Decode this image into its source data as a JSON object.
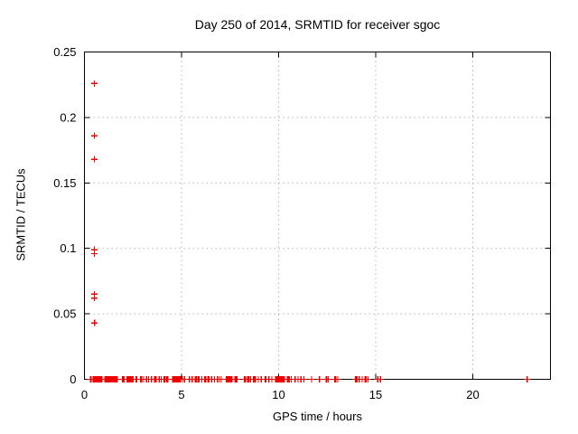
{
  "chart_data": {
    "type": "scatter",
    "title": "Day 250 of 2014, SRMTID for receiver sgoc",
    "xlabel": "GPS time / hours",
    "ylabel": "SRMTID / TECUs",
    "xlim": [
      0,
      24
    ],
    "ylim": [
      0,
      0.25
    ],
    "xticks": [
      0,
      5,
      10,
      15,
      20
    ],
    "yticks": [
      0,
      0.05,
      0.1,
      0.15,
      0.2,
      0.25
    ],
    "xtick_labels": [
      "0",
      "5",
      "10",
      "15",
      "20"
    ],
    "ytick_labels": [
      "0",
      "0.05",
      "0.1",
      "0.15",
      "0.2",
      "0.25"
    ],
    "grid": true,
    "legend_position": "none",
    "marker": "plus",
    "colors": {
      "marker": "#ee0000",
      "grid": "#b5b5b5",
      "axis": "#000000",
      "text": "#000000",
      "background": "#ffffff"
    },
    "series": [
      {
        "name": "SRMTID",
        "points": [
          [
            0.51,
            0.226
          ],
          [
            0.51,
            0.186
          ],
          [
            0.51,
            0.168
          ],
          [
            0.51,
            0.099
          ],
          [
            0.51,
            0.096
          ],
          [
            0.51,
            0.065
          ],
          [
            0.51,
            0.062
          ],
          [
            0.52,
            0.043
          ],
          [
            0.3,
            0
          ],
          [
            0.35,
            0
          ],
          [
            0.45,
            0
          ],
          [
            0.5,
            0
          ],
          [
            0.55,
            0
          ],
          [
            0.6,
            0
          ],
          [
            0.65,
            0
          ],
          [
            0.7,
            0
          ],
          [
            0.75,
            0
          ],
          [
            0.8,
            0
          ],
          [
            0.85,
            0
          ],
          [
            0.9,
            0
          ],
          [
            1.05,
            0
          ],
          [
            1.1,
            0
          ],
          [
            1.15,
            0
          ],
          [
            1.2,
            0
          ],
          [
            1.25,
            0
          ],
          [
            1.3,
            0
          ],
          [
            1.35,
            0
          ],
          [
            1.4,
            0
          ],
          [
            1.45,
            0
          ],
          [
            1.5,
            0
          ],
          [
            1.55,
            0
          ],
          [
            1.6,
            0
          ],
          [
            1.65,
            0
          ],
          [
            1.7,
            0
          ],
          [
            1.95,
            0
          ],
          [
            2.0,
            0
          ],
          [
            2.05,
            0
          ],
          [
            2.2,
            0
          ],
          [
            2.25,
            0
          ],
          [
            2.3,
            0
          ],
          [
            2.35,
            0
          ],
          [
            2.4,
            0
          ],
          [
            2.45,
            0
          ],
          [
            2.5,
            0
          ],
          [
            2.65,
            0
          ],
          [
            2.7,
            0
          ],
          [
            2.9,
            0
          ],
          [
            2.95,
            0
          ],
          [
            3.05,
            0
          ],
          [
            3.2,
            0
          ],
          [
            3.3,
            0
          ],
          [
            3.45,
            0
          ],
          [
            3.6,
            0
          ],
          [
            3.65,
            0
          ],
          [
            3.7,
            0
          ],
          [
            3.85,
            0
          ],
          [
            3.95,
            0
          ],
          [
            4.1,
            0
          ],
          [
            4.15,
            0
          ],
          [
            4.25,
            0
          ],
          [
            4.3,
            0
          ],
          [
            4.55,
            0
          ],
          [
            4.6,
            0
          ],
          [
            4.65,
            0
          ],
          [
            4.7,
            0
          ],
          [
            4.75,
            0
          ],
          [
            4.8,
            0
          ],
          [
            4.85,
            0
          ],
          [
            4.9,
            0
          ],
          [
            4.95,
            0
          ],
          [
            5.05,
            0
          ],
          [
            5.15,
            0
          ],
          [
            5.4,
            0
          ],
          [
            5.55,
            0
          ],
          [
            5.7,
            0
          ],
          [
            5.75,
            0
          ],
          [
            5.85,
            0
          ],
          [
            5.9,
            0
          ],
          [
            6.05,
            0
          ],
          [
            6.2,
            0
          ],
          [
            6.25,
            0
          ],
          [
            6.35,
            0
          ],
          [
            6.4,
            0
          ],
          [
            6.55,
            0
          ],
          [
            6.7,
            0
          ],
          [
            6.85,
            0
          ],
          [
            6.95,
            0
          ],
          [
            7.05,
            0
          ],
          [
            7.3,
            0
          ],
          [
            7.35,
            0
          ],
          [
            7.4,
            0
          ],
          [
            7.45,
            0
          ],
          [
            7.5,
            0
          ],
          [
            7.55,
            0
          ],
          [
            7.6,
            0
          ],
          [
            7.75,
            0
          ],
          [
            7.8,
            0
          ],
          [
            7.85,
            0
          ],
          [
            8.25,
            0
          ],
          [
            8.3,
            0
          ],
          [
            8.4,
            0
          ],
          [
            8.45,
            0
          ],
          [
            8.55,
            0
          ],
          [
            8.7,
            0
          ],
          [
            8.75,
            0
          ],
          [
            8.8,
            0
          ],
          [
            8.95,
            0
          ],
          [
            9.1,
            0
          ],
          [
            9.3,
            0
          ],
          [
            9.35,
            0
          ],
          [
            9.5,
            0
          ],
          [
            9.65,
            0
          ],
          [
            9.85,
            0
          ],
          [
            9.9,
            0
          ],
          [
            9.95,
            0
          ],
          [
            10.0,
            0
          ],
          [
            10.05,
            0
          ],
          [
            10.1,
            0
          ],
          [
            10.15,
            0
          ],
          [
            10.2,
            0
          ],
          [
            10.25,
            0
          ],
          [
            10.3,
            0
          ],
          [
            10.45,
            0
          ],
          [
            10.5,
            0
          ],
          [
            10.55,
            0
          ],
          [
            10.65,
            0
          ],
          [
            10.85,
            0
          ],
          [
            11.0,
            0
          ],
          [
            11.15,
            0
          ],
          [
            11.3,
            0
          ],
          [
            11.7,
            0
          ],
          [
            12.1,
            0
          ],
          [
            12.45,
            0
          ],
          [
            12.55,
            0
          ],
          [
            12.9,
            0
          ],
          [
            12.95,
            0
          ],
          [
            13.05,
            0
          ],
          [
            13.95,
            0
          ],
          [
            14.0,
            0
          ],
          [
            14.05,
            0
          ],
          [
            14.15,
            0
          ],
          [
            14.3,
            0
          ],
          [
            14.45,
            0
          ],
          [
            14.5,
            0
          ],
          [
            14.6,
            0
          ],
          [
            15.1,
            0
          ],
          [
            15.25,
            0
          ],
          [
            22.8,
            0
          ]
        ]
      }
    ]
  }
}
